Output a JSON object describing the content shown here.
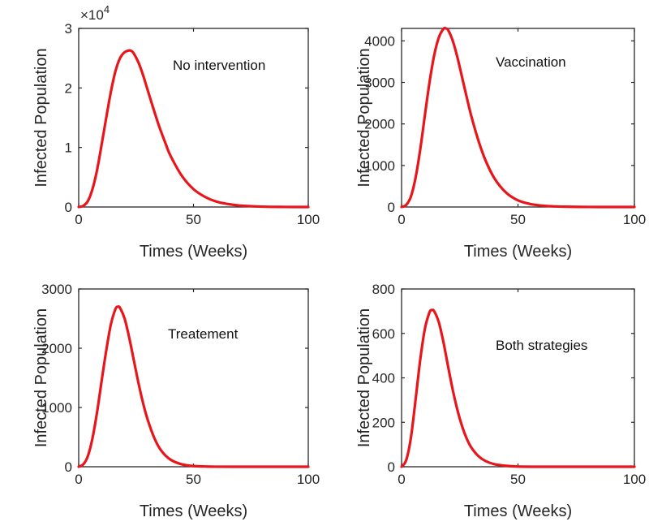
{
  "colors": {
    "curve": "#e8151b",
    "axis": "#262626"
  },
  "chart_data": [
    {
      "type": "line",
      "title": "",
      "annotation": "No intervention",
      "xlabel": "Times (Weeks)",
      "ylabel": "Infected Population",
      "xlim": [
        0,
        100
      ],
      "ylim": [
        0,
        3
      ],
      "y_exponent_label": "×10",
      "y_exponent_power": "4",
      "xticks": [
        "0",
        "50",
        "100"
      ],
      "yticks": [
        "0",
        "1",
        "2",
        "3"
      ],
      "xtick_values": [
        0,
        50,
        100
      ],
      "ytick_values": [
        0,
        1,
        2,
        3
      ],
      "series": [
        {
          "x": [
            0,
            2,
            4,
            6,
            8,
            10,
            12,
            14,
            16,
            18,
            20,
            22,
            23,
            24,
            26,
            28,
            30,
            32,
            35,
            38,
            40,
            45,
            50,
            55,
            60,
            65,
            70,
            80,
            90,
            100
          ],
          "values": [
            0.0,
            0.02,
            0.1,
            0.3,
            0.62,
            1.05,
            1.5,
            1.93,
            2.28,
            2.5,
            2.6,
            2.63,
            2.62,
            2.58,
            2.43,
            2.22,
            1.97,
            1.72,
            1.36,
            1.05,
            0.86,
            0.52,
            0.3,
            0.17,
            0.09,
            0.05,
            0.025,
            0.006,
            0.001,
            0.0
          ]
        }
      ]
    },
    {
      "type": "line",
      "title": "",
      "annotation": "Vaccination",
      "xlabel": "Times (Weeks)",
      "ylabel": "Infected Population",
      "xlim": [
        0,
        100
      ],
      "ylim": [
        0,
        4300
      ],
      "xticks": [
        "0",
        "50",
        "100"
      ],
      "yticks": [
        "0",
        "1000",
        "2000",
        "3000",
        "4000"
      ],
      "xtick_values": [
        0,
        50,
        100
      ],
      "ytick_values": [
        0,
        1000,
        2000,
        3000,
        4000
      ],
      "series": [
        {
          "x": [
            0,
            2,
            4,
            6,
            8,
            10,
            12,
            14,
            16,
            18,
            19,
            20,
            22,
            24,
            26,
            28,
            30,
            33,
            36,
            40,
            45,
            50,
            55,
            60,
            65,
            70,
            80,
            90,
            100
          ],
          "values": [
            0,
            50,
            250,
            700,
            1380,
            2200,
            3000,
            3650,
            4080,
            4290,
            4300,
            4260,
            4000,
            3600,
            3120,
            2640,
            2180,
            1600,
            1130,
            680,
            340,
            160,
            75,
            35,
            16,
            7,
            1,
            0,
            0
          ]
        }
      ]
    },
    {
      "type": "line",
      "title": "",
      "annotation": "Treatement",
      "xlabel": "Times (Weeks)",
      "ylabel": "Infected Population",
      "xlim": [
        0,
        100
      ],
      "ylim": [
        0,
        3000
      ],
      "xticks": [
        "0",
        "50",
        "100"
      ],
      "yticks": [
        "0",
        "1000",
        "2000",
        "3000"
      ],
      "xtick_values": [
        0,
        50,
        100
      ],
      "ytick_values": [
        0,
        1000,
        2000,
        3000
      ],
      "series": [
        {
          "x": [
            0,
            2,
            4,
            6,
            8,
            10,
            12,
            14,
            16,
            17,
            18,
            20,
            22,
            24,
            26,
            28,
            30,
            33,
            36,
            40,
            45,
            50,
            55,
            60,
            70,
            80,
            90,
            100
          ],
          "values": [
            0,
            40,
            180,
            480,
            920,
            1450,
            1960,
            2400,
            2660,
            2700,
            2680,
            2500,
            2180,
            1800,
            1420,
            1080,
            800,
            480,
            270,
            120,
            40,
            12,
            4,
            1,
            0,
            0,
            0,
            0
          ]
        }
      ]
    },
    {
      "type": "line",
      "title": "",
      "annotation": "Both strategies",
      "xlabel": "Times (Weeks)",
      "ylabel": "Infected Population",
      "xlim": [
        0,
        100
      ],
      "ylim": [
        0,
        800
      ],
      "xticks": [
        "0",
        "50",
        "100"
      ],
      "yticks": [
        "0",
        "200",
        "400",
        "600",
        "800"
      ],
      "xtick_values": [
        0,
        50,
        100
      ],
      "ytick_values": [
        0,
        200,
        400,
        600,
        800
      ],
      "series": [
        {
          "x": [
            0,
            2,
            4,
            6,
            8,
            10,
            12,
            13,
            14,
            16,
            18,
            20,
            22,
            24,
            26,
            28,
            30,
            33,
            36,
            40,
            45,
            50,
            60,
            70,
            80,
            90,
            100
          ],
          "values": [
            0,
            30,
            130,
            300,
            480,
            620,
            695,
            705,
            700,
            650,
            560,
            450,
            345,
            255,
            182,
            126,
            86,
            48,
            26,
            11,
            4,
            1,
            0,
            0,
            0,
            0,
            0
          ]
        }
      ]
    }
  ]
}
